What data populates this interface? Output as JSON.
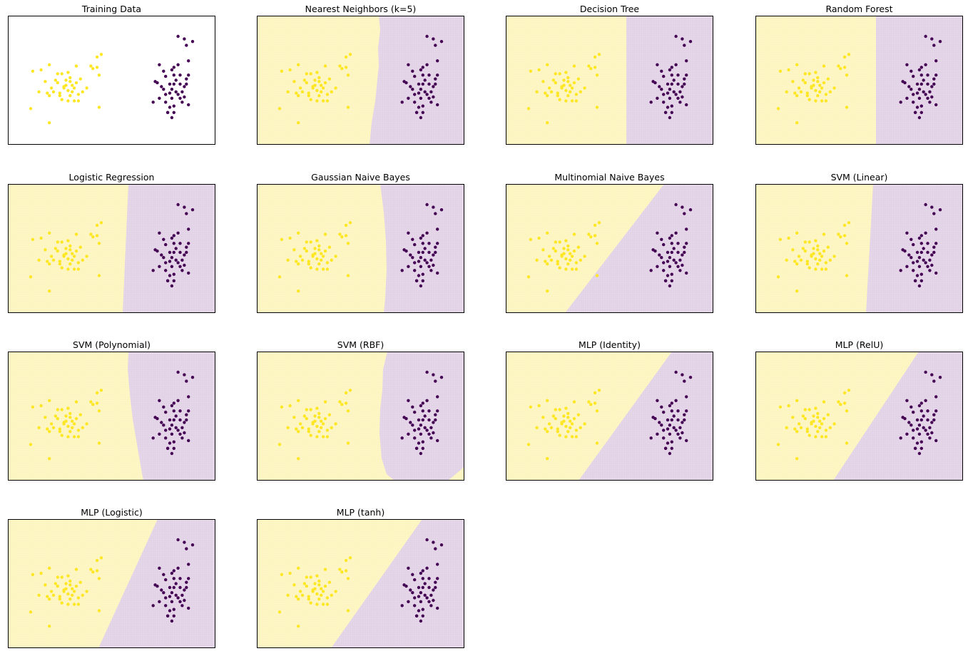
{
  "figure": {
    "rows": 4,
    "cols": 4,
    "colors": {
      "class0_point": "#440154",
      "class1_point": "#fde725",
      "class0_region": "#e2d2e5",
      "class1_region": "#fdf5bf",
      "axes_border": "#000000"
    }
  },
  "chart_data": [
    {
      "type": "scatter",
      "title": "Training Data",
      "xlim": [
        0,
        10
      ],
      "ylim": [
        0,
        10
      ],
      "ticks_visible": false,
      "series": [
        {
          "class": 1,
          "color": "#fde725",
          "points": [
            [
              4.5,
              7.0
            ],
            [
              4.3,
              6.8
            ],
            [
              4.1,
              5.9
            ],
            [
              4.0,
              6.1
            ],
            [
              4.3,
              6.0
            ],
            [
              4.4,
              5.4
            ],
            [
              1.6,
              5.8
            ],
            [
              1.2,
              5.7
            ],
            [
              1.5,
              4.1
            ],
            [
              1.1,
              2.8
            ],
            [
              2.0,
              3.8
            ],
            [
              2.1,
              4.4
            ],
            [
              2.3,
              5.0
            ],
            [
              2.4,
              4.8
            ],
            [
              2.6,
              5.5
            ],
            [
              2.8,
              5.0
            ],
            [
              2.9,
              5.6
            ],
            [
              2.2,
              4.1
            ],
            [
              2.5,
              3.8
            ],
            [
              2.9,
              4.2
            ],
            [
              3.0,
              5.2
            ],
            [
              3.1,
              4.6
            ],
            [
              3.3,
              4.8
            ],
            [
              3.1,
              4.1
            ],
            [
              3.4,
              3.4
            ],
            [
              3.6,
              4.1
            ],
            [
              3.8,
              4.4
            ],
            [
              3.5,
              5.1
            ],
            [
              2.6,
              3.5
            ],
            [
              2.9,
              3.4
            ],
            [
              3.2,
              3.4
            ],
            [
              2.7,
              4.4
            ],
            [
              1.8,
              4.9
            ],
            [
              2.4,
              5.5
            ],
            [
              2.0,
              6.2
            ],
            [
              1.9,
              4.0
            ],
            [
              3.0,
              4.9
            ],
            [
              2.7,
              4.5
            ],
            [
              3.3,
              6.1
            ],
            [
              3.0,
              3.8
            ],
            [
              2.5,
              4.0
            ],
            [
              3.2,
              4.4
            ],
            [
              2.8,
              4.6
            ],
            [
              3.4,
              3.9
            ],
            [
              4.4,
              2.9
            ],
            [
              2.0,
              1.7
            ]
          ]
        },
        {
          "class": 0,
          "color": "#440154",
          "points": [
            [
              8.2,
              8.4
            ],
            [
              8.6,
              7.7
            ],
            [
              8.9,
              8.0
            ],
            [
              8.5,
              8.2
            ],
            [
              8.7,
              6.5
            ],
            [
              8.0,
              6.0
            ],
            [
              8.2,
              6.2
            ],
            [
              7.9,
              5.8
            ],
            [
              8.3,
              5.4
            ],
            [
              7.1,
              4.9
            ],
            [
              7.6,
              5.3
            ],
            [
              7.4,
              4.5
            ],
            [
              7.5,
              4.3
            ],
            [
              7.6,
              3.3
            ],
            [
              7.9,
              4.3
            ],
            [
              8.0,
              5.4
            ],
            [
              8.1,
              5.0
            ],
            [
              8.0,
              4.7
            ],
            [
              8.1,
              4.1
            ],
            [
              7.9,
              3.6
            ],
            [
              8.3,
              3.6
            ],
            [
              8.4,
              4.1
            ],
            [
              8.5,
              4.5
            ],
            [
              8.6,
              5.1
            ],
            [
              8.7,
              3.1
            ],
            [
              7.8,
              2.9
            ],
            [
              8.0,
              3.0
            ],
            [
              7.7,
              2.5
            ],
            [
              7.9,
              2.1
            ],
            [
              7.7,
              2.5
            ],
            [
              7.3,
              3.6
            ],
            [
              7.3,
              6.2
            ],
            [
              7.2,
              4.8
            ],
            [
              7.0,
              3.3
            ],
            [
              8.0,
              2.5
            ],
            [
              8.4,
              3.3
            ],
            [
              8.2,
              3.9
            ],
            [
              7.6,
              3.9
            ],
            [
              7.8,
              4.7
            ],
            [
              8.7,
              5.4
            ],
            [
              8.3,
              4.7
            ],
            [
              7.5,
              5.7
            ],
            [
              7.8,
              4.0
            ],
            [
              8.5,
              3.7
            ],
            [
              8.6,
              4.7
            ]
          ]
        }
      ]
    },
    {
      "title": "Nearest Neighbors (k=5)"
    },
    {
      "title": "Decision Tree"
    },
    {
      "title": "Random Forest"
    },
    {
      "title": "Logistic Regression"
    },
    {
      "title": "Gaussian Naive Bayes"
    },
    {
      "title": "Multinomial Naive Bayes"
    },
    {
      "title": "SVM (Linear)"
    },
    {
      "title": "SVM (Polynomial)"
    },
    {
      "title": "SVM (RBF)"
    },
    {
      "title": "MLP (Identity)"
    },
    {
      "title": "MLP (RelU)"
    },
    {
      "title": "MLP (Logistic)"
    },
    {
      "title": "MLP (tanh)"
    }
  ]
}
